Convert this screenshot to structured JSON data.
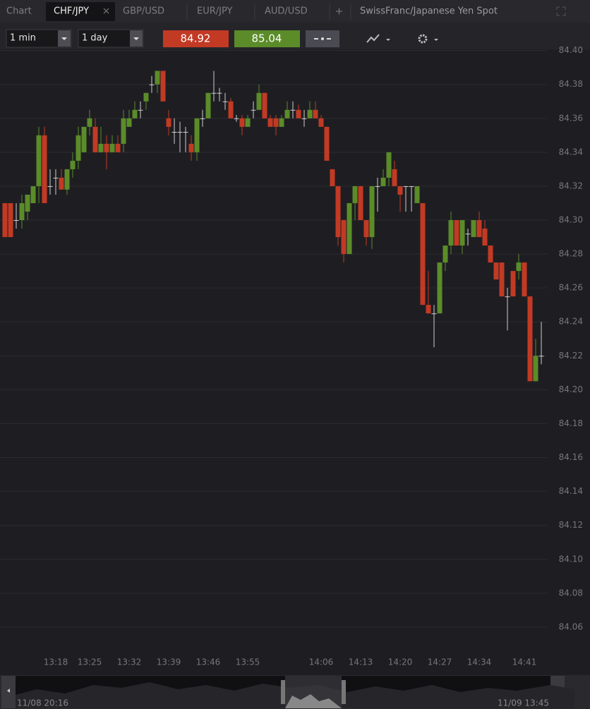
{
  "tabs": [
    "Chart",
    "CHF/JPY",
    "GBP/USD",
    "EUR/JPY",
    "AUD/USD"
  ],
  "instrument": "SwissFranc/Japanese Yen Spot",
  "toolbar": {
    "interval": "1 min",
    "range": "1 day",
    "bid": "84.92",
    "ask": "85.04"
  },
  "navigator": {
    "start": "11/08 20:16",
    "end": "11/09 13:45"
  },
  "chart_data": {
    "type": "candlestick",
    "up_color": "#5b8c29",
    "down_color": "#c23a24",
    "flat_color": "#cfcfcf",
    "grid": true,
    "ylim": [
      84.045,
      84.404
    ],
    "yticks": [
      84.06,
      84.08,
      {
        "value": 84.1,
        "label": "84.10"
      },
      84.12,
      84.14,
      84.16,
      84.18,
      {
        "value": 84.2,
        "label": "84.20"
      },
      84.22,
      84.24,
      84.26,
      84.28,
      {
        "value": 84.3,
        "label": "84.30"
      },
      84.32,
      84.34,
      84.36,
      84.38,
      {
        "value": 84.4,
        "label": "84.40"
      }
    ],
    "categories": [
      null,
      null,
      null,
      null,
      null,
      null,
      null,
      null,
      null,
      "13:18",
      null,
      null,
      null,
      null,
      null,
      "13:25",
      null,
      null,
      null,
      null,
      null,
      null,
      "13:32",
      null,
      null,
      null,
      null,
      null,
      null,
      "13:39",
      null,
      null,
      null,
      null,
      null,
      null,
      "13:46",
      null,
      null,
      null,
      null,
      null,
      null,
      "13:55",
      null,
      null,
      null,
      null,
      null,
      null,
      null,
      null,
      null,
      null,
      null,
      null,
      "14:06",
      null,
      null,
      null,
      null,
      null,
      null,
      "14:13",
      null,
      null,
      null,
      null,
      null,
      null,
      "14:20",
      null,
      null,
      null,
      null,
      null,
      null,
      "14:27",
      null,
      null,
      null,
      null,
      null,
      null,
      "14:34",
      null,
      null,
      null,
      null,
      null,
      null,
      null,
      "14:41",
      null,
      null,
      null
    ],
    "open": [
      84.31,
      84.31,
      84.3,
      84.3,
      84.305,
      84.31,
      84.32,
      84.35,
      84.32,
      84.325,
      84.325,
      84.318,
      84.33,
      84.335,
      84.34,
      84.355,
      84.355,
      84.34,
      84.345,
      84.34,
      84.345,
      84.345,
      84.355,
      84.36,
      84.365,
      84.37,
      84.38,
      84.38,
      84.388,
      84.36,
      84.352,
      84.352,
      84.352,
      84.345,
      84.34,
      84.36,
      84.36,
      84.375,
      84.375,
      84.37,
      84.37,
      84.36,
      84.36,
      84.355,
      84.365,
      84.365,
      84.375,
      84.36,
      84.36,
      84.355,
      84.36,
      84.365,
      84.365,
      84.36,
      84.36,
      84.365,
      84.36,
      84.355,
      84.33,
      84.32,
      84.3,
      84.28,
      84.31,
      84.32,
      84.3,
      84.29,
      84.32,
      84.32,
      84.325,
      84.33,
      84.32,
      84.32,
      84.32,
      84.31,
      84.31,
      84.25,
      84.245,
      84.245,
      84.275,
      84.285,
      84.3,
      84.285,
      84.292,
      84.29,
      84.3,
      84.295,
      84.285,
      84.275,
      84.275,
      84.255,
      84.27,
      84.27,
      84.275,
      84.255,
      84.205,
      84.22
    ],
    "high": [
      84.31,
      84.31,
      84.31,
      84.315,
      84.315,
      84.32,
      84.355,
      84.355,
      84.33,
      84.33,
      84.33,
      84.33,
      84.34,
      84.355,
      84.355,
      84.365,
      84.36,
      84.355,
      84.35,
      84.35,
      84.35,
      84.365,
      84.365,
      84.37,
      84.37,
      84.375,
      84.385,
      84.388,
      84.388,
      84.365,
      84.36,
      84.358,
      84.355,
      84.35,
      84.36,
      84.365,
      84.375,
      84.388,
      84.378,
      84.375,
      84.372,
      84.362,
      84.362,
      84.362,
      84.37,
      84.38,
      84.375,
      84.362,
      84.362,
      84.362,
      84.37,
      84.37,
      84.368,
      84.365,
      84.37,
      84.37,
      84.362,
      84.355,
      84.33,
      84.32,
      84.3,
      84.31,
      84.32,
      84.32,
      84.3,
      84.32,
      84.325,
      84.33,
      84.34,
      84.335,
      84.32,
      84.32,
      84.32,
      84.32,
      84.31,
      84.27,
      84.25,
      84.275,
      84.285,
      84.305,
      84.3,
      84.3,
      84.295,
      84.3,
      84.305,
      84.3,
      84.285,
      84.275,
      84.275,
      84.26,
      84.27,
      84.28,
      84.275,
      84.255,
      84.23,
      84.24
    ],
    "low": [
      84.29,
      84.29,
      84.295,
      84.295,
      84.3,
      84.31,
      84.31,
      84.31,
      84.315,
      84.315,
      84.318,
      84.315,
      84.325,
      84.33,
      84.34,
      84.35,
      84.34,
      84.34,
      84.33,
      84.34,
      84.34,
      84.34,
      84.355,
      84.36,
      84.36,
      84.365,
      84.375,
      84.375,
      84.37,
      84.35,
      84.345,
      84.34,
      84.34,
      84.335,
      84.335,
      84.355,
      84.36,
      84.37,
      84.37,
      84.365,
      84.36,
      84.358,
      84.35,
      84.355,
      84.36,
      84.365,
      84.36,
      84.355,
      84.35,
      84.355,
      84.36,
      84.36,
      84.36,
      84.355,
      84.36,
      84.36,
      84.355,
      84.335,
      84.32,
      84.285,
      84.275,
      84.28,
      84.3,
      84.3,
      84.285,
      84.283,
      84.305,
      84.32,
      84.32,
      84.32,
      84.305,
      84.305,
      84.305,
      84.31,
      84.25,
      84.245,
      84.225,
      84.245,
      84.27,
      84.28,
      84.285,
      84.28,
      84.285,
      84.29,
      84.29,
      84.285,
      84.275,
      84.265,
      84.255,
      84.235,
      84.255,
      84.265,
      84.255,
      84.205,
      84.205,
      84.215
    ],
    "close": [
      84.29,
      84.29,
      84.3,
      84.31,
      84.315,
      84.32,
      84.35,
      84.31,
      84.32,
      84.325,
      84.318,
      84.33,
      84.335,
      84.35,
      84.355,
      84.36,
      84.34,
      84.345,
      84.34,
      84.345,
      84.34,
      84.36,
      84.36,
      84.365,
      84.365,
      84.375,
      84.38,
      84.388,
      84.37,
      84.355,
      84.352,
      84.352,
      84.352,
      84.34,
      84.36,
      84.36,
      84.375,
      84.375,
      84.375,
      84.37,
      84.36,
      84.36,
      84.355,
      84.36,
      84.365,
      84.375,
      84.36,
      84.355,
      84.355,
      84.36,
      84.365,
      84.365,
      84.36,
      84.36,
      84.365,
      84.36,
      84.355,
      84.335,
      84.32,
      84.29,
      84.28,
      84.31,
      84.32,
      84.3,
      84.29,
      84.32,
      84.32,
      84.325,
      84.34,
      84.32,
      84.315,
      84.32,
      84.32,
      84.32,
      84.25,
      84.245,
      84.245,
      84.275,
      84.285,
      84.3,
      84.285,
      84.3,
      84.292,
      84.3,
      84.29,
      84.285,
      84.275,
      84.265,
      84.255,
      84.255,
      84.255,
      84.275,
      84.255,
      84.205,
      84.22,
      84.22
    ]
  }
}
